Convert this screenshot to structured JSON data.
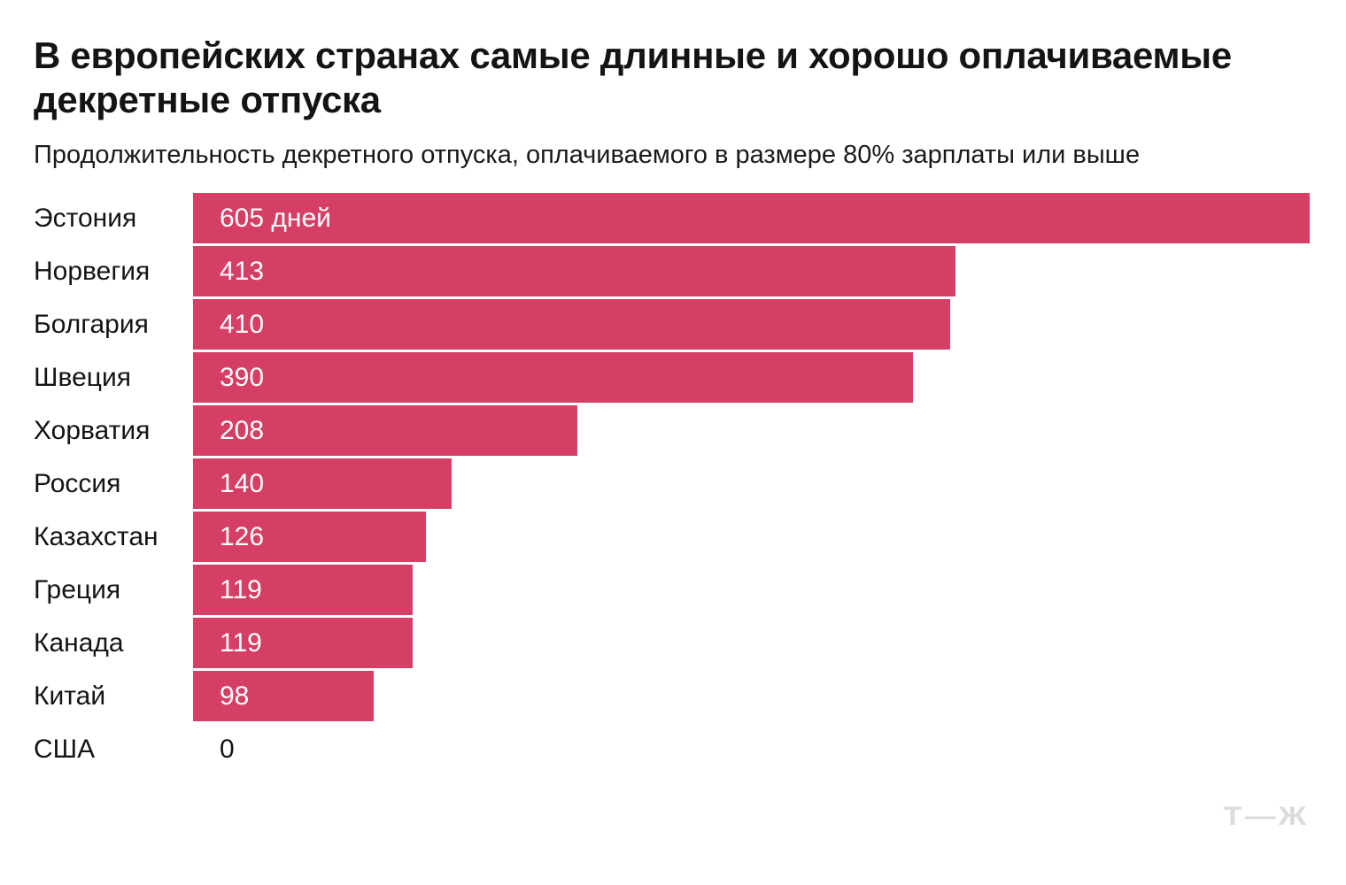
{
  "header": {
    "title_line1": "В европейских странах самые длинные и хорошо оплачиваемые",
    "title_line2": "декретные отпуска",
    "subtitle": "Продолжительность декретного отпуска, оплачиваемого в размере 80% зарплаты или выше"
  },
  "chart_data": {
    "type": "bar",
    "orientation": "horizontal",
    "title": "В европейских странах самые длинные и хорошо оплачиваемые декретные отпуска",
    "subtitle": "Продолжительность декретного отпуска, оплачиваемого в размере 80% зарплаты или выше",
    "categories": [
      "Эстония",
      "Норвегия",
      "Болгария",
      "Швеция",
      "Хорватия",
      "Россия",
      "Казахстан",
      "Греция",
      "Канада",
      "Китай",
      "США"
    ],
    "values": [
      605,
      413,
      410,
      390,
      208,
      140,
      126,
      119,
      119,
      98,
      0
    ],
    "values_display": [
      "605 дней",
      "413",
      "410",
      "390",
      "208",
      "140",
      "126",
      "119",
      "119",
      "98",
      "0"
    ],
    "unit_label": "дней",
    "xlim": [
      0,
      605
    ],
    "grid": "off",
    "legend": "none",
    "bar_color": "#d53f66",
    "value_label_color": "#ffffff",
    "zero_value_label_color": "#141414"
  },
  "footer": {
    "logo_text": "Т—Ж",
    "logo_color": "#dbdbdb"
  }
}
